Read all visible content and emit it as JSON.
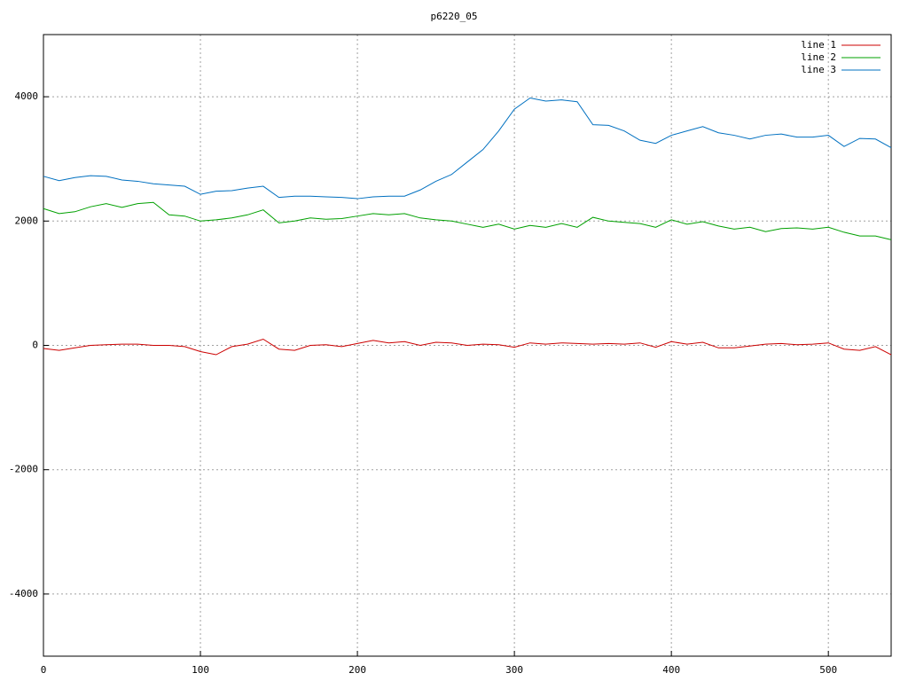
{
  "chart_data": {
    "type": "line",
    "title": "p6220_05",
    "x": [
      0,
      10,
      20,
      30,
      40,
      50,
      60,
      70,
      80,
      90,
      100,
      110,
      120,
      130,
      140,
      150,
      160,
      170,
      180,
      190,
      200,
      210,
      220,
      230,
      240,
      250,
      260,
      270,
      280,
      290,
      300,
      310,
      320,
      330,
      340,
      350,
      360,
      370,
      380,
      390,
      400,
      410,
      420,
      430,
      440,
      450,
      460,
      470,
      480,
      490,
      500,
      510,
      520,
      530,
      540
    ],
    "series": [
      {
        "name": "line 1",
        "color": "#cc0000",
        "values": [
          -50,
          -80,
          -40,
          0,
          10,
          20,
          20,
          0,
          0,
          -20,
          -100,
          -150,
          -20,
          20,
          100,
          -60,
          -80,
          0,
          10,
          -20,
          30,
          80,
          40,
          60,
          0,
          50,
          40,
          0,
          20,
          10,
          -30,
          40,
          20,
          40,
          30,
          20,
          30,
          20,
          40,
          -30,
          60,
          20,
          50,
          -40,
          -40,
          -10,
          20,
          30,
          10,
          20,
          40,
          -60,
          -80,
          -20,
          -150
        ]
      },
      {
        "name": "line 2",
        "color": "#00a000",
        "values": [
          2200,
          2120,
          2150,
          2230,
          2280,
          2220,
          2280,
          2300,
          2100,
          2080,
          2000,
          2020,
          2050,
          2100,
          2180,
          1970,
          2000,
          2050,
          2030,
          2040,
          2080,
          2120,
          2100,
          2120,
          2050,
          2020,
          2000,
          1950,
          1900,
          1950,
          1870,
          1930,
          1900,
          1960,
          1900,
          2060,
          2000,
          1980,
          1960,
          1900,
          2020,
          1950,
          1990,
          1920,
          1870,
          1900,
          1830,
          1880,
          1890,
          1870,
          1900,
          1820,
          1760,
          1760,
          1700
        ]
      },
      {
        "name": "line 3",
        "color": "#0070c0",
        "values": [
          2720,
          2650,
          2700,
          2730,
          2720,
          2660,
          2640,
          2600,
          2580,
          2560,
          2430,
          2480,
          2490,
          2530,
          2560,
          2380,
          2400,
          2400,
          2390,
          2380,
          2360,
          2390,
          2400,
          2400,
          2500,
          2640,
          2750,
          2950,
          3150,
          3450,
          3800,
          3980,
          3930,
          3950,
          3920,
          3550,
          3540,
          3450,
          3300,
          3250,
          3380,
          3450,
          3520,
          3420,
          3380,
          3320,
          3380,
          3400,
          3350,
          3350,
          3380,
          3200,
          3330,
          3320,
          3180
        ]
      }
    ],
    "xlim": [
      0,
      540
    ],
    "xticks": [
      0,
      100,
      200,
      300,
      400,
      500
    ],
    "ylim": [
      -5000,
      5000
    ],
    "yticks": [
      -4000,
      -2000,
      0,
      2000,
      4000
    ],
    "grid": true,
    "legend": "top-right"
  }
}
